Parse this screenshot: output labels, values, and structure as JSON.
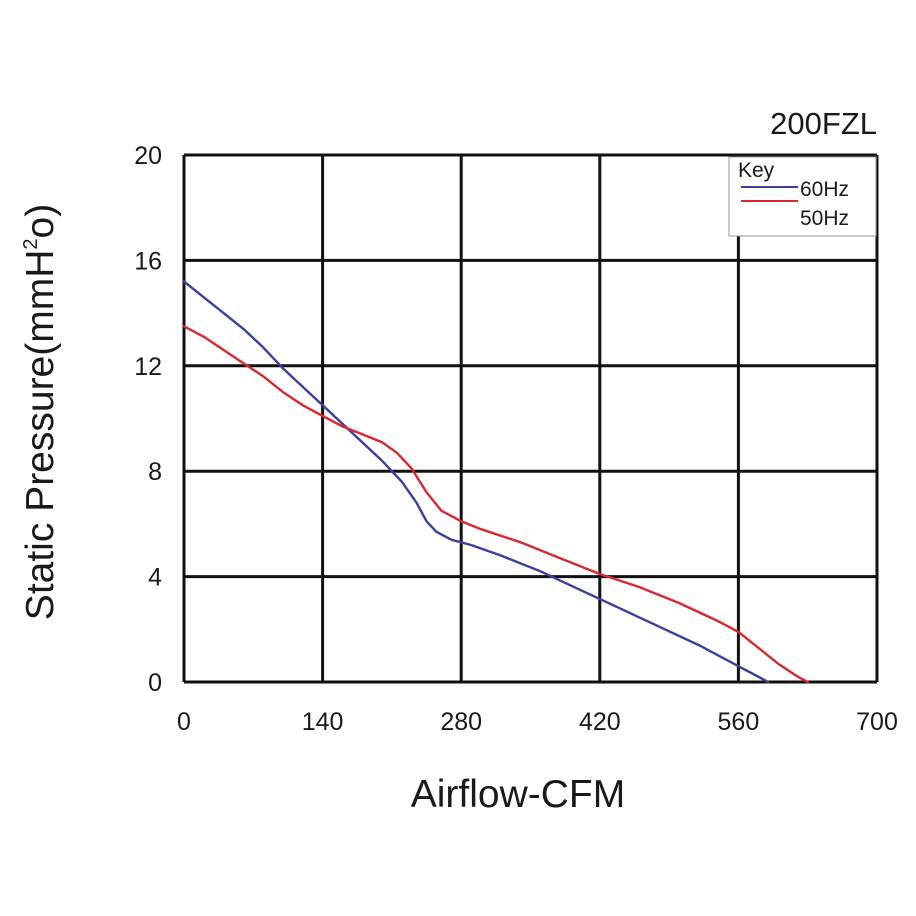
{
  "chart_data": {
    "type": "line",
    "title": "200FZL",
    "xlabel": "Airflow-CFM",
    "ylabel_main": "Static Pressure(mmH",
    "ylabel_sup": "2",
    "ylabel_end": "o)",
    "xlim": [
      0,
      700
    ],
    "ylim": [
      0,
      20
    ],
    "x_ticks": [
      "0",
      "140",
      "280",
      "420",
      "560",
      "700"
    ],
    "y_ticks": [
      "0",
      "4",
      "8",
      "12",
      "16",
      "20"
    ],
    "grid": true,
    "legend": {
      "title": "Key",
      "placement": "top-right"
    },
    "series": [
      {
        "name": "60Hz",
        "color": "#3a3fa0",
        "x": [
          0,
          20,
          40,
          60,
          80,
          100,
          120,
          140,
          160,
          180,
          200,
          220,
          235,
          245,
          255,
          270,
          290,
          320,
          360,
          400,
          440,
          480,
          520,
          560,
          575,
          590
        ],
        "y": [
          15.2,
          14.6,
          14.0,
          13.4,
          12.7,
          11.9,
          11.2,
          10.5,
          9.8,
          9.1,
          8.4,
          7.6,
          6.8,
          6.1,
          5.7,
          5.4,
          5.2,
          4.8,
          4.2,
          3.5,
          2.8,
          2.1,
          1.4,
          0.6,
          0.3,
          0.0
        ]
      },
      {
        "name": "50Hz",
        "color": "#d9282f",
        "x": [
          0,
          20,
          40,
          60,
          80,
          100,
          120,
          140,
          160,
          180,
          200,
          215,
          230,
          245,
          260,
          280,
          300,
          340,
          380,
          420,
          460,
          500,
          540,
          560,
          580,
          600,
          620,
          630
        ],
        "y": [
          13.5,
          13.1,
          12.6,
          12.1,
          11.6,
          11.0,
          10.5,
          10.1,
          9.7,
          9.4,
          9.1,
          8.7,
          8.1,
          7.2,
          6.5,
          6.1,
          5.8,
          5.3,
          4.7,
          4.1,
          3.6,
          3.0,
          2.3,
          1.9,
          1.3,
          0.7,
          0.2,
          0.0
        ]
      }
    ]
  }
}
